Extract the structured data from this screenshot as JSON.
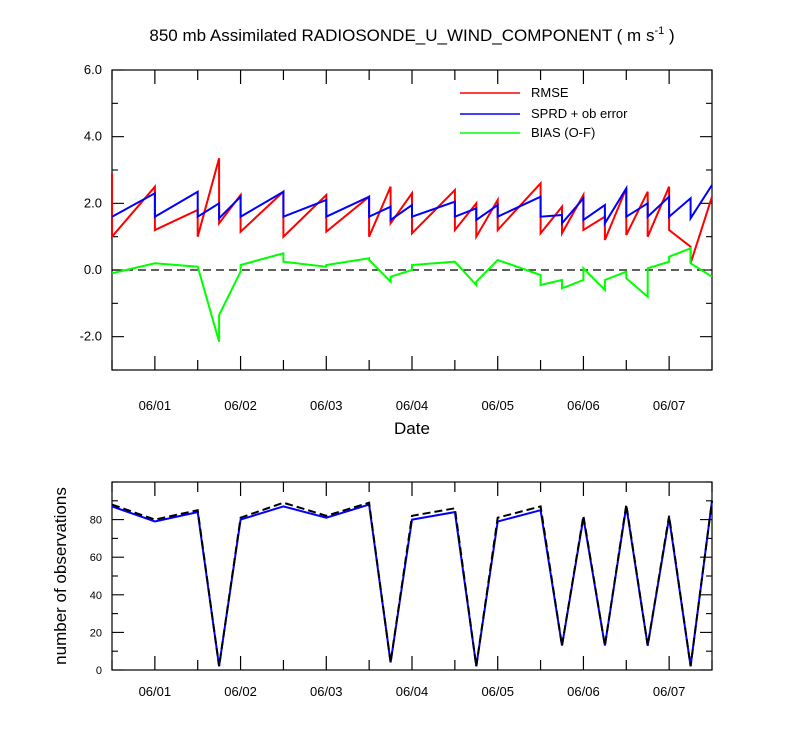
{
  "chart_data": [
    {
      "type": "line",
      "title": "850 mb Assimilated RADIOSONDE_U_WIND_COMPONENT ( m s",
      "title_unit_exponent": "-1",
      "title_suffix": " )",
      "xlabel": "Date",
      "ylabel": "",
      "x_ticks": [
        "06/01",
        "06/02",
        "06/03",
        "06/04",
        "06/05",
        "06/06",
        "06/07"
      ],
      "y_ticks": [
        "6.0",
        "4.0",
        "2.0",
        "0.0",
        "-2.0"
      ],
      "ylim": [
        -3.0,
        6.0
      ],
      "xlim": [
        0.5,
        7.5
      ],
      "reference_line": 0.0,
      "legend_position": "top-right",
      "series": [
        {
          "name": "RMSE",
          "color": "#ff0000",
          "x": [
            0.5,
            0.5,
            1.0,
            1.0,
            1.5,
            1.5,
            1.75,
            1.75,
            2.0,
            2.0,
            2.5,
            2.5,
            3.0,
            3.0,
            3.5,
            3.5,
            3.75,
            3.75,
            4.0,
            4.0,
            4.5,
            4.5,
            4.75,
            4.75,
            5.0,
            5.0,
            5.5,
            5.5,
            5.75,
            5.75,
            6.0,
            6.0,
            6.25,
            6.25,
            6.5,
            6.5,
            6.75,
            6.75,
            7.0,
            7.0,
            7.25,
            7.25,
            7.5
          ],
          "values": [
            2.9,
            1.0,
            2.5,
            1.2,
            1.8,
            1.0,
            3.35,
            1.4,
            2.25,
            1.15,
            2.35,
            1.0,
            2.25,
            1.15,
            2.2,
            1.0,
            2.5,
            1.4,
            2.3,
            1.1,
            2.4,
            1.2,
            2.0,
            1.0,
            2.1,
            1.2,
            2.6,
            1.1,
            1.9,
            1.1,
            2.25,
            1.2,
            1.6,
            0.9,
            2.45,
            1.05,
            2.35,
            1.0,
            2.5,
            1.2,
            0.7,
            0.2,
            2.2
          ]
        },
        {
          "name": "SPRD + ob error",
          "color": "#0000ff",
          "x": [
            0.5,
            1.0,
            1.0,
            1.5,
            1.5,
            1.75,
            1.75,
            2.0,
            2.0,
            2.5,
            2.5,
            3.0,
            3.0,
            3.5,
            3.5,
            3.75,
            3.75,
            4.0,
            4.0,
            4.5,
            4.5,
            4.75,
            4.75,
            5.0,
            5.0,
            5.5,
            5.5,
            5.75,
            5.75,
            6.0,
            6.0,
            6.25,
            6.25,
            6.5,
            6.5,
            6.75,
            6.75,
            7.0,
            7.0,
            7.25,
            7.25,
            7.5
          ],
          "values": [
            1.6,
            2.3,
            1.6,
            2.35,
            1.6,
            2.0,
            1.55,
            2.2,
            1.6,
            2.35,
            1.6,
            2.1,
            1.6,
            2.2,
            1.6,
            1.9,
            1.5,
            1.95,
            1.6,
            2.05,
            1.6,
            1.85,
            1.5,
            1.95,
            1.6,
            2.2,
            1.6,
            1.65,
            1.4,
            2.15,
            1.5,
            1.95,
            1.4,
            2.45,
            1.6,
            2.0,
            1.6,
            2.2,
            1.6,
            2.15,
            1.55,
            2.55
          ]
        },
        {
          "name": "BIAS (O-F)",
          "color": "#00ff00",
          "x": [
            0.5,
            1.0,
            1.5,
            1.75,
            1.75,
            2.0,
            2.0,
            2.5,
            2.5,
            3.0,
            3.0,
            3.5,
            3.5,
            3.75,
            3.75,
            4.0,
            4.0,
            4.5,
            4.75,
            4.75,
            5.0,
            5.5,
            5.5,
            5.75,
            5.75,
            6.0,
            6.0,
            6.25,
            6.25,
            6.5,
            6.5,
            6.75,
            6.75,
            7.0,
            7.0,
            7.25,
            7.25,
            7.5
          ],
          "values": [
            -0.1,
            0.2,
            0.1,
            -2.15,
            -1.35,
            -0.05,
            0.15,
            0.5,
            0.25,
            0.1,
            0.15,
            0.35,
            0.3,
            -0.35,
            -0.2,
            0.0,
            0.15,
            0.25,
            -0.45,
            -0.35,
            0.3,
            -0.15,
            -0.45,
            -0.3,
            -0.55,
            -0.3,
            0.05,
            -0.6,
            -0.3,
            -0.05,
            -0.25,
            -0.8,
            0.05,
            0.25,
            0.4,
            0.65,
            0.2,
            -0.2
          ]
        }
      ]
    },
    {
      "type": "line",
      "title": "",
      "xlabel": "",
      "ylabel": "number of observations",
      "x_ticks": [
        "06/01",
        "06/02",
        "06/03",
        "06/04",
        "06/05",
        "06/06",
        "06/07"
      ],
      "y_ticks": [
        "80",
        "60",
        "40",
        "20",
        "0"
      ],
      "ylim": [
        0,
        100
      ],
      "xlim": [
        0.5,
        7.5
      ],
      "series": [
        {
          "name": "",
          "color": "#0000ff",
          "style": "solid",
          "x": [
            0.5,
            1.0,
            1.5,
            1.75,
            2.0,
            2.5,
            3.0,
            3.5,
            3.75,
            4.0,
            4.5,
            4.75,
            5.0,
            5.5,
            5.75,
            6.0,
            6.25,
            6.5,
            6.75,
            7.0,
            7.25,
            7.5
          ],
          "values": [
            87,
            79,
            84,
            2,
            80,
            87,
            81,
            88,
            4,
            80,
            84,
            2,
            79,
            85,
            13,
            81,
            13,
            87,
            13,
            81,
            2,
            90
          ]
        },
        {
          "name": "",
          "color": "#000000",
          "style": "dashed",
          "x": [
            0.5,
            1.0,
            1.5,
            1.75,
            2.0,
            2.5,
            3.0,
            3.5,
            3.75,
            4.0,
            4.5,
            4.75,
            5.0,
            5.5,
            5.75,
            6.0,
            6.25,
            6.5,
            6.75,
            7.0,
            7.25,
            7.5
          ],
          "values": [
            88,
            80,
            85,
            2,
            81,
            89,
            82,
            89,
            4,
            82,
            86,
            2,
            81,
            87,
            13,
            82,
            13,
            88,
            13,
            82,
            2,
            90
          ]
        }
      ]
    }
  ]
}
